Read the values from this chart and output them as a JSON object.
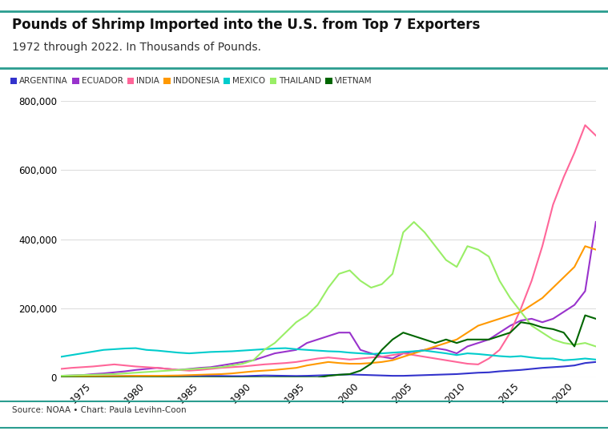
{
  "title": "Pounds of Shrimp Imported into the U.S. from Top 7 Exporters",
  "subtitle": "1972 through 2022. In Thousands of Pounds.",
  "source": "Source: NOAA • Chart: Paula Levihn-Coon",
  "xlim": [
    1972,
    2022
  ],
  "ylim": [
    0,
    800000
  ],
  "yticks": [
    0,
    200000,
    400000,
    600000,
    800000
  ],
  "xticks": [
    1975,
    1980,
    1985,
    1990,
    1995,
    2000,
    2005,
    2010,
    2015,
    2020
  ],
  "countries": [
    "ARGENTINA",
    "ECUADOR",
    "INDIA",
    "INDONESIA",
    "MEXICO",
    "THAILAND",
    "VIETNAM"
  ],
  "colors": {
    "ARGENTINA": "#3333cc",
    "ECUADOR": "#9933cc",
    "INDIA": "#ff6699",
    "INDONESIA": "#ff9900",
    "MEXICO": "#00cccc",
    "THAILAND": "#99ee66",
    "VIETNAM": "#006600"
  },
  "data": {
    "years": [
      1972,
      1973,
      1974,
      1975,
      1976,
      1977,
      1978,
      1979,
      1980,
      1981,
      1982,
      1983,
      1984,
      1985,
      1986,
      1987,
      1988,
      1989,
      1990,
      1991,
      1992,
      1993,
      1994,
      1995,
      1996,
      1997,
      1998,
      1999,
      2000,
      2001,
      2002,
      2003,
      2004,
      2005,
      2006,
      2007,
      2008,
      2009,
      2010,
      2011,
      2012,
      2013,
      2014,
      2015,
      2016,
      2017,
      2018,
      2019,
      2020,
      2021,
      2022
    ],
    "ARGENTINA": [
      2000,
      2500,
      3000,
      3500,
      4000,
      4000,
      4500,
      5000,
      4500,
      4000,
      3500,
      4000,
      5000,
      5500,
      5000,
      4500,
      4000,
      4000,
      5000,
      6000,
      5500,
      5000,
      4500,
      5000,
      6000,
      7000,
      8000,
      9000,
      8000,
      7000,
      6000,
      5000,
      5000,
      6000,
      7000,
      8000,
      9000,
      10000,
      12000,
      14000,
      15000,
      18000,
      20000,
      22000,
      25000,
      28000,
      30000,
      32000,
      35000,
      42000,
      45000
    ],
    "ECUADOR": [
      5000,
      6000,
      7000,
      10000,
      12000,
      15000,
      18000,
      22000,
      25000,
      28000,
      25000,
      22000,
      25000,
      28000,
      30000,
      35000,
      40000,
      45000,
      50000,
      60000,
      70000,
      75000,
      80000,
      100000,
      110000,
      120000,
      130000,
      130000,
      80000,
      70000,
      60000,
      55000,
      70000,
      75000,
      80000,
      85000,
      80000,
      70000,
      90000,
      100000,
      110000,
      130000,
      150000,
      165000,
      170000,
      160000,
      170000,
      190000,
      210000,
      250000,
      450000
    ],
    "INDIA": [
      25000,
      28000,
      30000,
      32000,
      35000,
      38000,
      35000,
      32000,
      30000,
      28000,
      25000,
      22000,
      20000,
      22000,
      25000,
      28000,
      30000,
      32000,
      35000,
      38000,
      40000,
      42000,
      45000,
      50000,
      55000,
      58000,
      55000,
      52000,
      55000,
      58000,
      60000,
      65000,
      70000,
      65000,
      60000,
      55000,
      50000,
      45000,
      40000,
      38000,
      55000,
      80000,
      130000,
      200000,
      280000,
      380000,
      500000,
      580000,
      650000,
      730000,
      700000
    ],
    "INDONESIA": [
      2000,
      2500,
      3000,
      3500,
      4000,
      4000,
      4500,
      5000,
      5000,
      5000,
      5500,
      6000,
      7000,
      8000,
      9000,
      10000,
      12000,
      15000,
      18000,
      20000,
      22000,
      25000,
      28000,
      35000,
      40000,
      45000,
      42000,
      40000,
      40000,
      42000,
      45000,
      50000,
      60000,
      70000,
      80000,
      90000,
      100000,
      110000,
      130000,
      150000,
      160000,
      170000,
      180000,
      190000,
      210000,
      230000,
      260000,
      290000,
      320000,
      380000,
      370000
    ],
    "MEXICO": [
      60000,
      65000,
      70000,
      75000,
      80000,
      82000,
      84000,
      85000,
      80000,
      78000,
      75000,
      72000,
      70000,
      72000,
      74000,
      75000,
      76000,
      78000,
      80000,
      82000,
      84000,
      85000,
      82000,
      80000,
      78000,
      76000,
      75000,
      72000,
      70000,
      68000,
      70000,
      72000,
      74000,
      76000,
      78000,
      74000,
      70000,
      65000,
      70000,
      68000,
      65000,
      62000,
      60000,
      62000,
      58000,
      55000,
      55000,
      50000,
      52000,
      55000,
      52000
    ],
    "THAILAND": [
      5000,
      6000,
      7000,
      8000,
      9000,
      10000,
      12000,
      14000,
      16000,
      18000,
      20000,
      22000,
      24000,
      26000,
      28000,
      30000,
      35000,
      40000,
      50000,
      80000,
      100000,
      130000,
      160000,
      180000,
      210000,
      260000,
      300000,
      310000,
      280000,
      260000,
      270000,
      300000,
      420000,
      450000,
      420000,
      380000,
      340000,
      320000,
      380000,
      370000,
      350000,
      280000,
      230000,
      190000,
      150000,
      130000,
      110000,
      100000,
      95000,
      100000,
      90000
    ],
    "VIETNAM": [
      0,
      0,
      0,
      0,
      0,
      0,
      0,
      0,
      0,
      0,
      0,
      0,
      0,
      0,
      0,
      0,
      0,
      0,
      0,
      0,
      0,
      0,
      0,
      0,
      0,
      5000,
      8000,
      10000,
      20000,
      40000,
      80000,
      110000,
      130000,
      120000,
      110000,
      100000,
      110000,
      100000,
      110000,
      110000,
      110000,
      120000,
      130000,
      160000,
      155000,
      145000,
      140000,
      130000,
      90000,
      180000,
      170000
    ]
  }
}
